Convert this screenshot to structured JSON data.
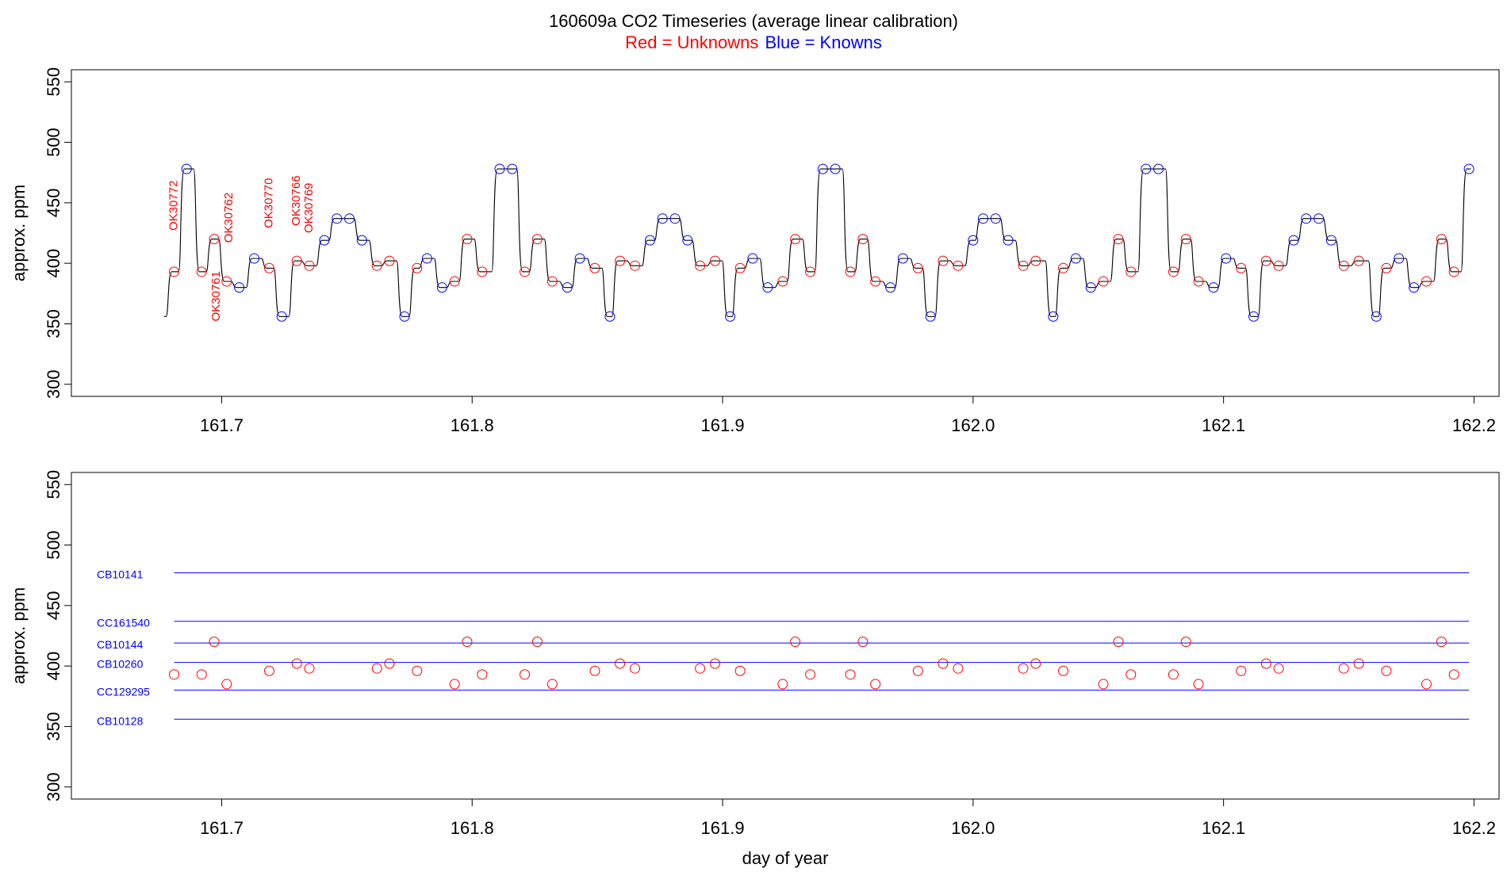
{
  "title": "160609a   CO2 Timeseries (average linear calibration)",
  "subtitle": {
    "unknowns": "Red = Unknowns",
    "knowns": "Blue = Knowns"
  },
  "colors": {
    "unknown": "#ff0000",
    "known": "#0000ff",
    "trace": "#000000"
  },
  "chart_data": [
    {
      "type": "line",
      "title": "160609a   CO2 Timeseries (average linear calibration)",
      "xlabel": "",
      "ylabel": "approx. ppm",
      "xlim": [
        161.64,
        162.21
      ],
      "ylim": [
        290,
        560
      ],
      "xticks": [
        "161.7",
        "161.8",
        "161.9",
        "162.0",
        "162.1",
        "162.2"
      ],
      "xtick_values": [
        161.7,
        161.8,
        161.9,
        162.0,
        162.1,
        162.2
      ],
      "yticks": [
        "300",
        "350",
        "400",
        "450",
        "500",
        "550"
      ],
      "ytick_values": [
        300,
        350,
        400,
        450,
        500,
        550
      ],
      "trace_start": {
        "x": 161.677,
        "y": 356
      },
      "series": [
        {
          "name": "Knowns",
          "points": [
            [
              161.686,
              478
            ],
            [
              161.707,
              380
            ],
            [
              161.713,
              404
            ],
            [
              161.724,
              356
            ],
            [
              161.741,
              419
            ],
            [
              161.746,
              437
            ],
            [
              161.751,
              437
            ],
            [
              161.756,
              419
            ],
            [
              161.773,
              356
            ],
            [
              161.782,
              404
            ],
            [
              161.788,
              380
            ],
            [
              161.811,
              478
            ],
            [
              161.816,
              478
            ],
            [
              161.838,
              380
            ],
            [
              161.843,
              404
            ],
            [
              161.855,
              356
            ],
            [
              161.871,
              419
            ],
            [
              161.876,
              437
            ],
            [
              161.881,
              437
            ],
            [
              161.886,
              419
            ],
            [
              161.903,
              356
            ],
            [
              161.912,
              404
            ],
            [
              161.918,
              380
            ],
            [
              161.94,
              478
            ],
            [
              161.945,
              478
            ],
            [
              161.967,
              380
            ],
            [
              161.972,
              404
            ],
            [
              161.983,
              356
            ],
            [
              162.0,
              419
            ],
            [
              162.004,
              437
            ],
            [
              162.009,
              437
            ],
            [
              162.014,
              419
            ],
            [
              162.032,
              356
            ],
            [
              162.041,
              404
            ],
            [
              162.047,
              380
            ],
            [
              162.069,
              478
            ],
            [
              162.074,
              478
            ],
            [
              162.096,
              380
            ],
            [
              162.101,
              404
            ],
            [
              162.112,
              356
            ],
            [
              162.128,
              419
            ],
            [
              162.133,
              437
            ],
            [
              162.138,
              437
            ],
            [
              162.143,
              419
            ],
            [
              162.161,
              356
            ],
            [
              162.17,
              404
            ],
            [
              162.176,
              380
            ],
            [
              162.198,
              478
            ]
          ]
        },
        {
          "name": "Unknowns",
          "points": [
            [
              161.681,
              393
            ],
            [
              161.692,
              393
            ],
            [
              161.697,
              420
            ],
            [
              161.702,
              385
            ],
            [
              161.719,
              396
            ],
            [
              161.73,
              402
            ],
            [
              161.735,
              398
            ],
            [
              161.762,
              398
            ],
            [
              161.767,
              402
            ],
            [
              161.778,
              396
            ],
            [
              161.793,
              385
            ],
            [
              161.798,
              420
            ],
            [
              161.804,
              393
            ],
            [
              161.821,
              393
            ],
            [
              161.826,
              420
            ],
            [
              161.832,
              385
            ],
            [
              161.849,
              396
            ],
            [
              161.859,
              402
            ],
            [
              161.865,
              398
            ],
            [
              161.891,
              398
            ],
            [
              161.897,
              402
            ],
            [
              161.907,
              396
            ],
            [
              161.924,
              385
            ],
            [
              161.929,
              420
            ],
            [
              161.935,
              393
            ],
            [
              161.951,
              393
            ],
            [
              161.956,
              420
            ],
            [
              161.961,
              385
            ],
            [
              161.978,
              396
            ],
            [
              161.988,
              402
            ],
            [
              161.994,
              398
            ],
            [
              162.02,
              398
            ],
            [
              162.025,
              402
            ],
            [
              162.036,
              396
            ],
            [
              162.052,
              385
            ],
            [
              162.058,
              420
            ],
            [
              162.063,
              393
            ],
            [
              162.08,
              393
            ],
            [
              162.085,
              420
            ],
            [
              162.09,
              385
            ],
            [
              162.107,
              396
            ],
            [
              162.117,
              402
            ],
            [
              162.122,
              398
            ],
            [
              162.148,
              398
            ],
            [
              162.154,
              402
            ],
            [
              162.165,
              396
            ],
            [
              162.181,
              385
            ],
            [
              162.187,
              420
            ],
            [
              162.192,
              393
            ]
          ]
        }
      ],
      "annotations": [
        {
          "text": "OK30772",
          "x": 161.681,
          "y": 427
        },
        {
          "text": "OK30761",
          "x": 161.698,
          "y": 352
        },
        {
          "text": "OK30762",
          "x": 161.703,
          "y": 417
        },
        {
          "text": "OK30770",
          "x": 161.719,
          "y": 429
        },
        {
          "text": "OK30766",
          "x": 161.73,
          "y": 431
        },
        {
          "text": "OK30769",
          "x": 161.735,
          "y": 425
        }
      ]
    },
    {
      "type": "scatter",
      "title": "",
      "xlabel": "day of year",
      "ylabel": "approx. ppm",
      "xlim": [
        161.64,
        162.21
      ],
      "ylim": [
        290,
        560
      ],
      "xticks": [
        "161.7",
        "161.8",
        "161.9",
        "162.0",
        "162.1",
        "162.2"
      ],
      "xtick_values": [
        161.7,
        161.8,
        161.9,
        162.0,
        162.1,
        162.2
      ],
      "yticks": [
        "300",
        "350",
        "400",
        "450",
        "500",
        "550"
      ],
      "ytick_values": [
        300,
        350,
        400,
        450,
        500,
        550
      ],
      "reference_lines": [
        {
          "name": "CB10141",
          "value": 477
        },
        {
          "name": "CC161540",
          "value": 437
        },
        {
          "name": "CB10144",
          "value": 419
        },
        {
          "name": "CB10260",
          "value": 403
        },
        {
          "name": "CC129295",
          "value": 380
        },
        {
          "name": "CB10128",
          "value": 356
        }
      ],
      "line_x_range": [
        161.681,
        162.198
      ],
      "series": [
        {
          "name": "Unknowns",
          "points": [
            [
              161.681,
              393
            ],
            [
              161.692,
              393
            ],
            [
              161.697,
              420
            ],
            [
              161.702,
              385
            ],
            [
              161.719,
              396
            ],
            [
              161.73,
              402
            ],
            [
              161.735,
              398
            ],
            [
              161.762,
              398
            ],
            [
              161.767,
              402
            ],
            [
              161.778,
              396
            ],
            [
              161.793,
              385
            ],
            [
              161.798,
              420
            ],
            [
              161.804,
              393
            ],
            [
              161.821,
              393
            ],
            [
              161.826,
              420
            ],
            [
              161.832,
              385
            ],
            [
              161.849,
              396
            ],
            [
              161.859,
              402
            ],
            [
              161.865,
              398
            ],
            [
              161.891,
              398
            ],
            [
              161.897,
              402
            ],
            [
              161.907,
              396
            ],
            [
              161.924,
              385
            ],
            [
              161.929,
              420
            ],
            [
              161.935,
              393
            ],
            [
              161.951,
              393
            ],
            [
              161.956,
              420
            ],
            [
              161.961,
              385
            ],
            [
              161.978,
              396
            ],
            [
              161.988,
              402
            ],
            [
              161.994,
              398
            ],
            [
              162.02,
              398
            ],
            [
              162.025,
              402
            ],
            [
              162.036,
              396
            ],
            [
              162.052,
              385
            ],
            [
              162.058,
              420
            ],
            [
              162.063,
              393
            ],
            [
              162.08,
              393
            ],
            [
              162.085,
              420
            ],
            [
              162.09,
              385
            ],
            [
              162.107,
              396
            ],
            [
              162.117,
              402
            ],
            [
              162.122,
              398
            ],
            [
              162.148,
              398
            ],
            [
              162.154,
              402
            ],
            [
              162.165,
              396
            ],
            [
              162.181,
              385
            ],
            [
              162.187,
              420
            ],
            [
              162.192,
              393
            ]
          ]
        }
      ]
    }
  ]
}
